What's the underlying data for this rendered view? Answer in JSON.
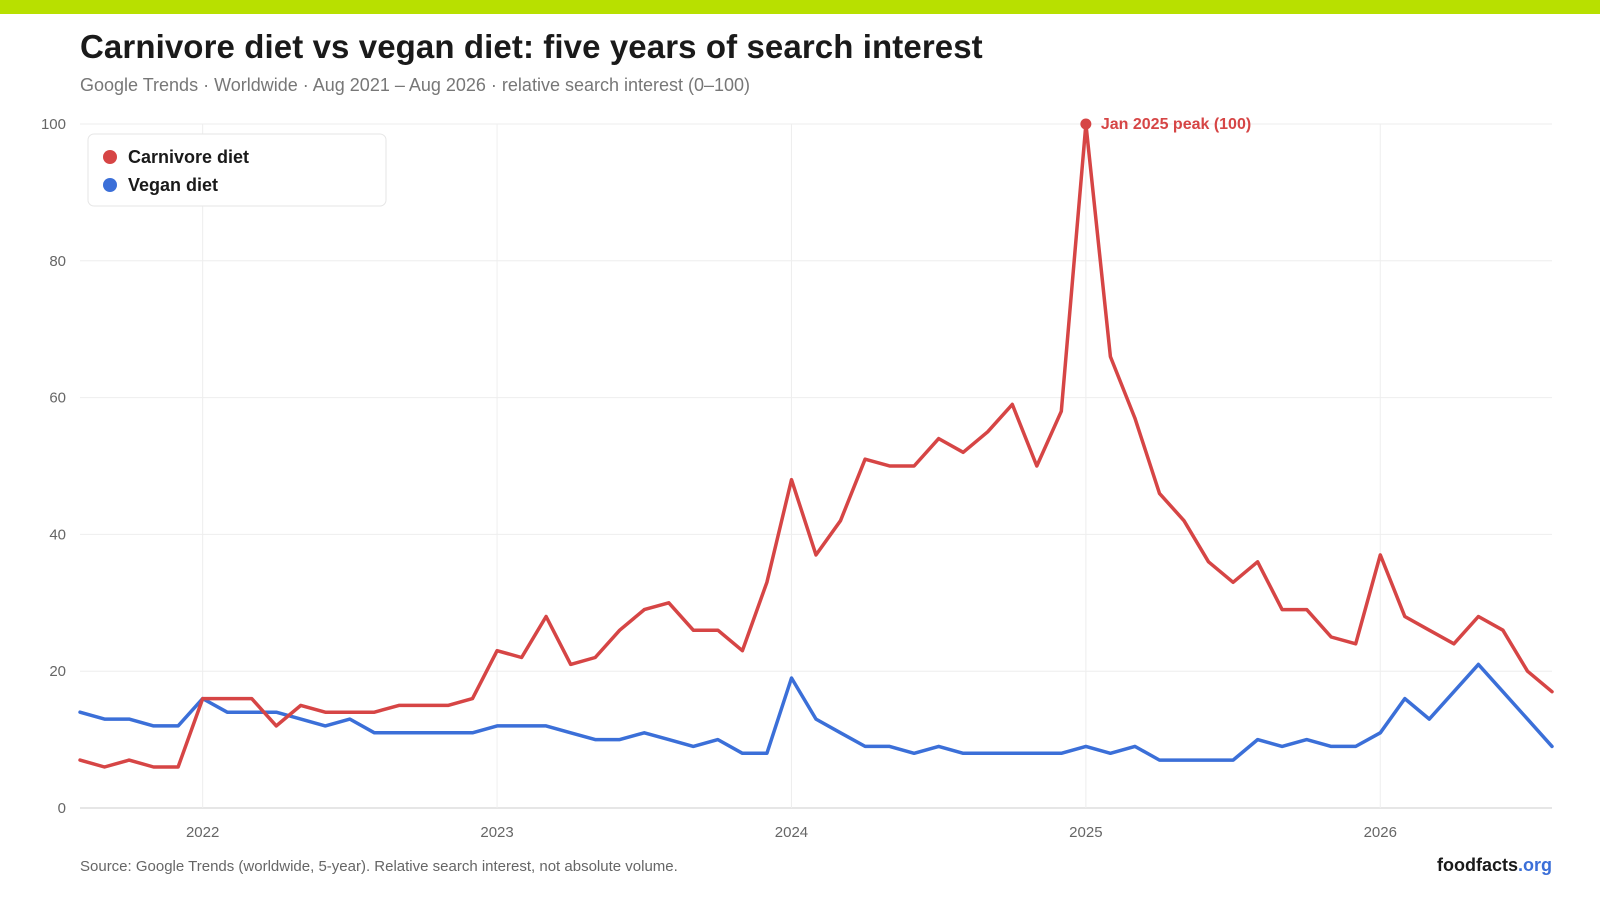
{
  "header": {
    "title": "Carnivore diet vs vegan diet: five years of search interest",
    "subtitle": "Google Trends · Worldwide · Aug 2021 – Aug 2026 · relative search interest (0–100)"
  },
  "footer": {
    "source": "Source: Google Trends (worldwide, 5-year). Relative search interest, not absolute volume.",
    "brand_main": "foodfacts",
    "brand_tld": ".org"
  },
  "colors": {
    "accent_bar": "#b8e000",
    "carnivore": "#d64545",
    "vegan": "#3b6fd8",
    "grid": "#eeeeee"
  },
  "chart_data": {
    "type": "line",
    "title": "Carnivore diet vs vegan diet: five years of search interest",
    "xlabel": "",
    "ylabel": "",
    "ylim": [
      0,
      100
    ],
    "yticks": [
      0,
      20,
      40,
      60,
      80,
      100
    ],
    "xlim": [
      "2021-08",
      "2026-08"
    ],
    "xticks": [
      {
        "x": "2022-01",
        "label": "2022"
      },
      {
        "x": "2023-01",
        "label": "2023"
      },
      {
        "x": "2024-01",
        "label": "2024"
      },
      {
        "x": "2025-01",
        "label": "2025"
      },
      {
        "x": "2026-01",
        "label": "2026"
      }
    ],
    "grid": true,
    "legend_position": "top-left",
    "x": [
      "2021-08",
      "2021-09",
      "2021-10",
      "2021-11",
      "2021-12",
      "2022-01",
      "2022-02",
      "2022-03",
      "2022-04",
      "2022-05",
      "2022-06",
      "2022-07",
      "2022-08",
      "2022-09",
      "2022-10",
      "2022-11",
      "2022-12",
      "2023-01",
      "2023-02",
      "2023-03",
      "2023-04",
      "2023-05",
      "2023-06",
      "2023-07",
      "2023-08",
      "2023-09",
      "2023-10",
      "2023-11",
      "2023-12",
      "2024-01",
      "2024-02",
      "2024-03",
      "2024-04",
      "2024-05",
      "2024-06",
      "2024-07",
      "2024-08",
      "2024-09",
      "2024-10",
      "2024-11",
      "2024-12",
      "2025-01",
      "2025-02",
      "2025-03",
      "2025-04",
      "2025-05",
      "2025-06",
      "2025-07",
      "2025-08",
      "2025-09",
      "2025-10",
      "2025-11",
      "2025-12",
      "2026-01",
      "2026-02",
      "2026-03",
      "2026-04",
      "2026-05",
      "2026-06",
      "2026-07",
      "2026-08"
    ],
    "series": [
      {
        "name": "Carnivore diet",
        "color": "#d64545",
        "values": [
          7,
          6,
          7,
          6,
          6,
          16,
          16,
          16,
          12,
          15,
          14,
          14,
          14,
          15,
          15,
          15,
          16,
          23,
          22,
          28,
          21,
          22,
          26,
          29,
          30,
          26,
          26,
          23,
          33,
          48,
          37,
          42,
          51,
          50,
          50,
          54,
          52,
          55,
          59,
          50,
          58,
          100,
          66,
          57,
          46,
          42,
          36,
          33,
          36,
          29,
          29,
          25,
          24,
          37,
          28,
          26,
          24,
          28,
          26,
          20,
          17
        ]
      },
      {
        "name": "Vegan diet",
        "color": "#3b6fd8",
        "values": [
          14,
          13,
          13,
          12,
          12,
          16,
          14,
          14,
          14,
          13,
          12,
          13,
          11,
          11,
          11,
          11,
          11,
          12,
          12,
          12,
          11,
          10,
          10,
          11,
          10,
          9,
          10,
          8,
          8,
          19,
          13,
          11,
          9,
          9,
          8,
          9,
          8,
          8,
          8,
          8,
          8,
          9,
          8,
          9,
          7,
          7,
          7,
          7,
          10,
          9,
          10,
          9,
          9,
          11,
          16,
          13,
          17,
          21,
          17,
          13,
          9
        ]
      }
    ],
    "annotations": [
      {
        "x": "2025-01",
        "y": 100,
        "series": "Carnivore diet",
        "text": "Jan 2025 peak (100)"
      }
    ]
  }
}
